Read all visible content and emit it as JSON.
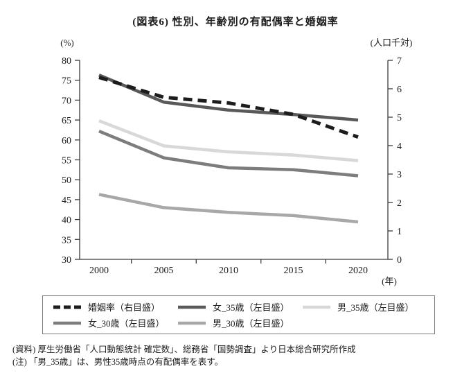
{
  "title": "(図表6) 性別、年齢別の有配偶率と婚姻率",
  "chart_data": {
    "type": "line",
    "title": "(図表6) 性別、年齢別の有配偶率と婚姻率",
    "x_categories": [
      "2000",
      "2005",
      "2010",
      "2015",
      "2020"
    ],
    "x_axis_unit": "(年)",
    "left_axis": {
      "unit": "(%)",
      "min": 30,
      "max": 80,
      "step": 5
    },
    "right_axis": {
      "unit": "(人口千対)",
      "min": 0,
      "max": 7,
      "step": 1
    },
    "grid": false,
    "legend_position": "bottom",
    "series": [
      {
        "name": "婚姻率（右目盛）",
        "axis": "right",
        "style": "dashed",
        "color": "#1c1c1c",
        "values": [
          6.4,
          5.7,
          5.5,
          5.1,
          4.3
        ]
      },
      {
        "name": "女_35歳（左目盛）",
        "axis": "left",
        "style": "solid",
        "color": "#595959",
        "values": [
          76.3,
          69.5,
          67.5,
          66.4,
          65.0
        ]
      },
      {
        "name": "男_35歳（左目盛）",
        "axis": "left",
        "style": "solid",
        "color": "#d8d8d8",
        "values": [
          64.8,
          58.5,
          57.0,
          56.2,
          54.8
        ]
      },
      {
        "name": "女_30歳（左目盛）",
        "axis": "left",
        "style": "solid",
        "color": "#7d7d7d",
        "values": [
          62.2,
          55.5,
          53.0,
          52.5,
          51.0
        ]
      },
      {
        "name": "男_30歳（左目盛）",
        "axis": "left",
        "style": "solid",
        "color": "#a8a8a8",
        "values": [
          46.3,
          43.0,
          41.8,
          41.0,
          39.4
        ]
      }
    ]
  },
  "legend_rows": [
    [
      0,
      1,
      2
    ],
    [
      3,
      4
    ]
  ],
  "footnotes": [
    "(資料) 厚生労働省「人口動態統計 確定数」、総務省「国勢調査」より日本総合研究所作成",
    "(注) 「男_35歳」は、男性35歳時点の有配偶率を表す。"
  ]
}
